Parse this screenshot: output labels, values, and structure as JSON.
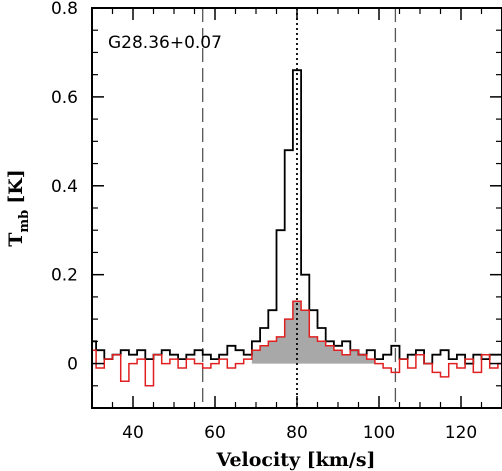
{
  "chart_data": {
    "type": "line",
    "style": "step",
    "annotation": "G28.36+0.07",
    "xlabel": "Velocity [km/s]",
    "ylabel_main": "T",
    "ylabel_sub": "mb",
    "ylabel_unit": "[K]",
    "xlim": [
      30,
      130
    ],
    "ylim": [
      -0.1,
      0.8
    ],
    "xticks": [
      40,
      60,
      80,
      100,
      120
    ],
    "yticks": [
      0,
      0.2,
      0.4,
      0.6,
      0.8
    ],
    "ytick_labels": [
      "0",
      "0.2",
      "0.4",
      "0.6",
      "0.8"
    ],
    "grid": false,
    "dashed_lines_x": [
      57,
      104
    ],
    "dotted_line_x": 80,
    "series": [
      {
        "color": "#000000",
        "x": [
          30,
          32,
          34,
          36,
          38,
          40,
          42,
          44,
          46,
          48,
          50,
          52,
          54,
          56,
          58,
          60,
          62,
          64,
          66,
          68,
          70,
          72,
          74,
          76,
          78,
          80,
          82,
          84,
          86,
          88,
          90,
          92,
          94,
          96,
          98,
          100,
          102,
          104,
          106,
          108,
          110,
          112,
          114,
          116,
          118,
          120,
          122,
          124,
          126,
          128,
          130
        ],
        "y": [
          0.05,
          0.03,
          0.01,
          0.02,
          0.03,
          0.02,
          0.03,
          0.01,
          0.02,
          0.03,
          0.02,
          0.01,
          0.02,
          0.03,
          0.02,
          0.01,
          0.02,
          0.04,
          0.03,
          0.02,
          0.05,
          0.08,
          0.12,
          0.3,
          0.48,
          0.66,
          0.2,
          0.12,
          0.08,
          0.05,
          0.04,
          0.05,
          0.03,
          0.02,
          0.03,
          0.01,
          0.02,
          0.04,
          0.01,
          0.02,
          0.03,
          0.0,
          0.02,
          0.03,
          0.01,
          0.02,
          0.0,
          0.02,
          0.01,
          0.02,
          0.02
        ]
      },
      {
        "color": "#e02020",
        "x": [
          30,
          32,
          34,
          36,
          38,
          40,
          42,
          44,
          46,
          48,
          50,
          52,
          54,
          56,
          58,
          60,
          62,
          64,
          66,
          68,
          70,
          72,
          74,
          76,
          78,
          80,
          82,
          84,
          86,
          88,
          90,
          92,
          94,
          96,
          98,
          100,
          102,
          104,
          106,
          108,
          110,
          112,
          114,
          116,
          118,
          120,
          122,
          124,
          126,
          128,
          130
        ],
        "y": [
          0.03,
          -0.01,
          0.01,
          0.02,
          -0.04,
          0.0,
          0.01,
          -0.05,
          0.02,
          0.0,
          0.01,
          -0.01,
          0.01,
          0.0,
          -0.01,
          0.0,
          0.01,
          -0.01,
          0.0,
          0.01,
          0.03,
          0.04,
          0.05,
          0.06,
          0.1,
          0.14,
          0.12,
          0.06,
          0.05,
          0.04,
          0.03,
          0.02,
          0.03,
          0.02,
          0.01,
          0.0,
          -0.01,
          -0.02,
          0.01,
          -0.01,
          0.02,
          0.0,
          -0.02,
          -0.03,
          0.0,
          -0.01,
          0.01,
          -0.02,
          0.02,
          -0.01,
          0.0
        ]
      }
    ],
    "fill": {
      "color": "#a8a8a8",
      "x": [
        70,
        72,
        74,
        76,
        78,
        80,
        82,
        84,
        86,
        88,
        90,
        92,
        94,
        96,
        98,
        100
      ],
      "y": [
        0.03,
        0.04,
        0.05,
        0.06,
        0.1,
        0.14,
        0.12,
        0.06,
        0.05,
        0.04,
        0.03,
        0.02,
        0.03,
        0.02,
        0.01,
        0.0
      ]
    }
  }
}
